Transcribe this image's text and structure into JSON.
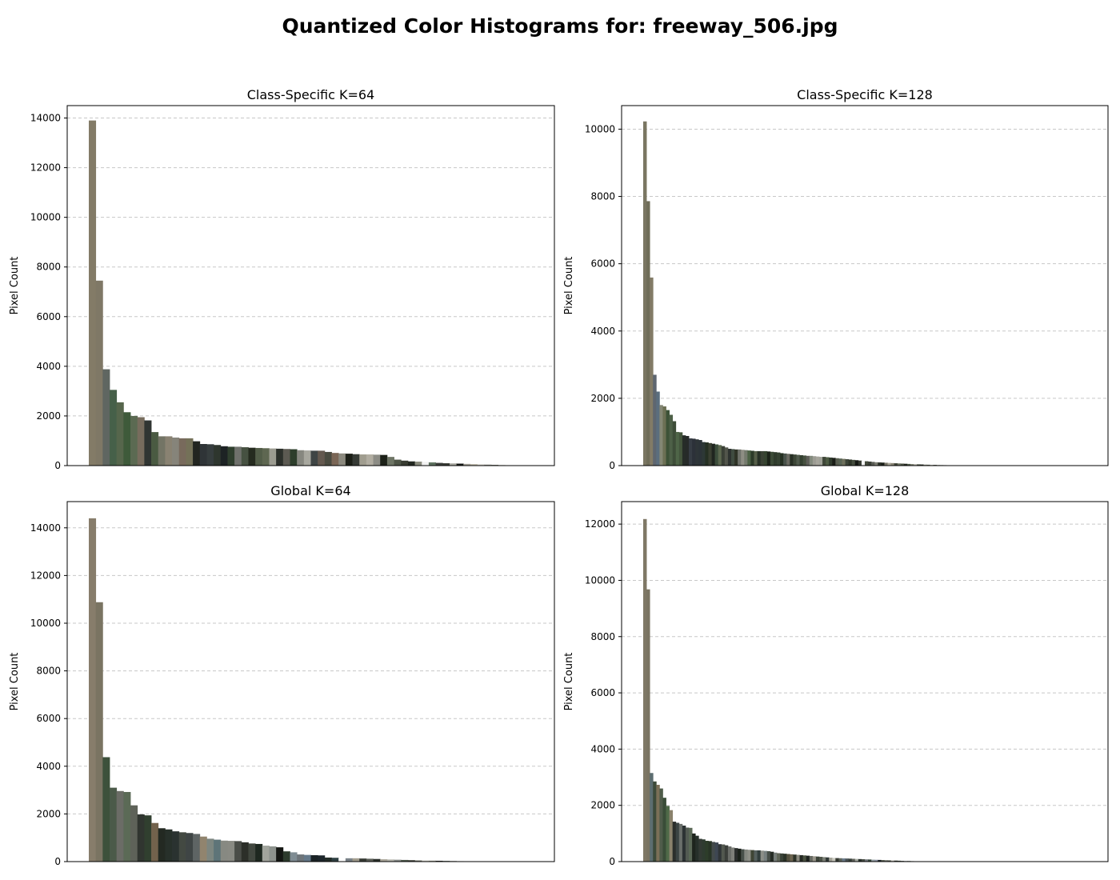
{
  "figure": {
    "title": "Quantized Color Histograms for: freeway_506.jpg"
  },
  "chart_data": [
    {
      "type": "bar",
      "title": "Class-Specific K=64",
      "xlabel": "",
      "ylabel": "Pixel Count",
      "ylim": [
        0,
        14500
      ],
      "yticks": [
        0,
        2000,
        4000,
        6000,
        8000,
        10000,
        12000,
        14000
      ],
      "grid": "y, dashed",
      "xticks": "none",
      "values": [
        13900,
        7450,
        3880,
        3050,
        2550,
        2150,
        2000,
        1950,
        1820,
        1350,
        1180,
        1180,
        1130,
        1100,
        1100,
        980,
        870,
        860,
        830,
        780,
        760,
        760,
        740,
        720,
        710,
        700,
        690,
        680,
        670,
        660,
        620,
        610,
        600,
        600,
        550,
        510,
        490,
        480,
        460,
        450,
        450,
        440,
        430,
        350,
        240,
        200,
        170,
        160,
        150,
        130,
        110,
        95,
        90,
        80,
        70,
        60,
        50,
        40,
        30,
        20,
        10,
        5,
        3,
        1
      ],
      "colors": [
        "#837b67",
        "#7f7866",
        "#5f6661",
        "#466049",
        "#56664c",
        "#3e5a3a",
        "#5b6a52",
        "#776c5d",
        "#303532",
        "#4a5a42",
        "#737465",
        "#898272",
        "#86847a",
        "#786a5c",
        "#747158",
        "#222520",
        "#2f3437",
        "#363d3e",
        "#2e362e",
        "#1d2324",
        "#2f3f2e",
        "#6f716c",
        "#465141",
        "#252b1f",
        "#525d48",
        "#5e6751",
        "#9c9c91",
        "#2c302b",
        "#5c5a52",
        "#2d3e2b",
        "#86877f",
        "#a7a79e",
        "#3f4545",
        "#64594f",
        "#4a4b40",
        "#7a6656",
        "#8b897e",
        "#1c1f17",
        "#363a35",
        "#a09d8f",
        "#b1ada1",
        "#8c8c85",
        "#1c2118",
        "#6e7565",
        "#4e5547",
        "#383c32",
        "#232821",
        "#8a8c7e",
        "#f2f2f2",
        "#5f7260",
        "#3b3e3a",
        "#383a34",
        "#a9a9a0",
        "#141714",
        "#a7a39a",
        "#bdb8a7",
        "#cfcdc4",
        "#8e8f88",
        "#6c6e63",
        "#9a9884",
        "#b9bbb0",
        "#3d4a35",
        "#2a2e25",
        "#1f221b"
      ]
    },
    {
      "type": "bar",
      "title": "Class-Specific K=128",
      "xlabel": "",
      "ylabel": "Pixel Count",
      "ylim": [
        0,
        10700
      ],
      "yticks": [
        0,
        2000,
        4000,
        6000,
        8000,
        10000
      ],
      "grid": "y, dashed",
      "xticks": "none",
      "values": [
        10230,
        7860,
        5590,
        2700,
        2200,
        1800,
        1760,
        1650,
        1510,
        1320,
        1000,
        990,
        900,
        880,
        810,
        800,
        780,
        760,
        700,
        690,
        670,
        650,
        630,
        610,
        580,
        540,
        500,
        490,
        480,
        480,
        470,
        460,
        450,
        440,
        430,
        430,
        430,
        430,
        420,
        410,
        400,
        390,
        370,
        360,
        350,
        340,
        330,
        320,
        310,
        300,
        290,
        290,
        280,
        270,
        260,
        260,
        250,
        240,
        230,
        220,
        210,
        200,
        190,
        180,
        170,
        160,
        150,
        140,
        130,
        120,
        110,
        100,
        95,
        90,
        85,
        80,
        75,
        70,
        65,
        60,
        55,
        50,
        46,
        42,
        38,
        34,
        30,
        27,
        24,
        21,
        18,
        15,
        13,
        11,
        9,
        7,
        5,
        4,
        3,
        2,
        2,
        1,
        1
      ],
      "colors": [
        "#7a7662",
        "#6f6d58",
        "#827b66",
        "#5e6670",
        "#5b6e7e",
        "#848774",
        "#6c7054",
        "#3d5237",
        "#4d6047",
        "#3e4d39",
        "#4f6548",
        "#44553c",
        "#262c28",
        "#262a29",
        "#363c44",
        "#2c3139",
        "#2e3538",
        "#2c3338",
        "#2d3836",
        "#253023",
        "#3a4032",
        "#202620",
        "#3b4d3b",
        "#5c684f",
        "#3a4036",
        "#52554b",
        "#2e3330",
        "#3f4b40",
        "#2e3326",
        "#6f726b",
        "#8e8e84",
        "#747a6d",
        "#4c6245",
        "#2c3a28",
        "#555e48",
        "#283126",
        "#3b4235",
        "#364430",
        "#1c2319",
        "#3c4a37",
        "#2f3b2c",
        "#354232",
        "#253022",
        "#48524a",
        "#6a6a62",
        "#272f24",
        "#3c4637",
        "#505a4c",
        "#344030",
        "#46503f",
        "#5e5e58",
        "#838a7d",
        "#9c9c93",
        "#a6a59c",
        "#a0a198",
        "#3f4739",
        "#4e5c44",
        "#2f3a2c",
        "#1a1d17",
        "#585d50",
        "#596555",
        "#6e705c",
        "#3c4438",
        "#2e3528",
        "#444c3e",
        "#151814",
        "#34382f",
        "#f4f4f4",
        "#444a3c",
        "#3a3f36",
        "#5a5d55",
        "#7b7d72",
        "#2d3329",
        "#1d221a",
        "#767366",
        "#a8a697",
        "#8a8676",
        "#3f4437",
        "#6b7160",
        "#4d5244",
        "#252a21",
        "#535e4c",
        "#818474",
        "#b1b0a5",
        "#414a3c",
        "#2a3126",
        "#929487",
        "#6a6e61",
        "#c6c4b8",
        "#373e32",
        "#8d9084",
        "#565a4e",
        "#22271f",
        "#3c4235",
        "#9a9a8d",
        "#464c40",
        "#777a6d",
        "#2f3429",
        "#5d6154",
        "#b8b7ab",
        "#cfcdc2",
        "#1d2019",
        "#6f7366"
      ]
    },
    {
      "type": "bar",
      "title": "Global K=64",
      "xlabel": "",
      "ylabel": "Pixel Count",
      "ylim": [
        0,
        15100
      ],
      "yticks": [
        0,
        2000,
        4000,
        6000,
        8000,
        10000,
        12000,
        14000
      ],
      "grid": "y, dashed",
      "xticks": "none",
      "values": [
        14400,
        10880,
        4380,
        3100,
        2960,
        2920,
        2360,
        1980,
        1940,
        1620,
        1400,
        1350,
        1270,
        1230,
        1200,
        1160,
        1050,
        960,
        920,
        880,
        870,
        860,
        810,
        760,
        740,
        670,
        640,
        600,
        430,
        390,
        300,
        280,
        270,
        260,
        170,
        160,
        150,
        140,
        140,
        130,
        120,
        110,
        100,
        90,
        80,
        70,
        60,
        50,
        45,
        40,
        35,
        30,
        25,
        20,
        15,
        12,
        10,
        8,
        6,
        5,
        4,
        3,
        2,
        1
      ],
      "colors": [
        "#877d6b",
        "#7a7462",
        "#3d513b",
        "#4b5a49",
        "#6b6c66",
        "#5b6a56",
        "#5e6259",
        "#303530",
        "#303f2f",
        "#72624c",
        "#232922",
        "#27302a",
        "#2a3230",
        "#434942",
        "#3f4545",
        "#5e6464",
        "#91846e",
        "#7d8680",
        "#5e7478",
        "#878982",
        "#898a83",
        "#4a4d48",
        "#2c2f29",
        "#41473f",
        "#1e2820",
        "#a2a59d",
        "#8d928d",
        "#141613",
        "#2d3b2d",
        "#7f8c93",
        "#6e757a",
        "#65798a",
        "#1b2326",
        "#1d262b",
        "#232c28",
        "#2f4043",
        "#ffffff",
        "#7a8288",
        "#a29d8e",
        "#383c36",
        "#5b5e57",
        "#2a2f2a",
        "#ada99c",
        "#b5b5ab",
        "#8a8e8b",
        "#4e5a4c",
        "#3d3f37",
        "#6d6e64",
        "#c8c6bb",
        "#9c9b8c",
        "#262924",
        "#57605a",
        "#7e8177",
        "#d5d4ce",
        "#3b4433",
        "#6a6b5e",
        "#909286",
        "#a8aaa2",
        "#1a1d18",
        "#5b5448",
        "#35372f",
        "#bfbcaf",
        "#4c4f45",
        "#7f7a6e"
      ]
    },
    {
      "type": "bar",
      "title": "Global K=128",
      "xlabel": "",
      "ylabel": "Pixel Count",
      "ylim": [
        0,
        12800
      ],
      "yticks": [
        0,
        2000,
        4000,
        6000,
        8000,
        10000,
        12000
      ],
      "grid": "y, dashed",
      "xticks": "none",
      "values": [
        12180,
        9680,
        3150,
        2850,
        2730,
        2600,
        2270,
        1980,
        1830,
        1420,
        1380,
        1340,
        1280,
        1210,
        1200,
        1000,
        920,
        810,
        790,
        740,
        730,
        700,
        680,
        620,
        610,
        580,
        540,
        500,
        480,
        460,
        440,
        430,
        420,
        410,
        400,
        400,
        390,
        380,
        370,
        350,
        320,
        300,
        290,
        280,
        270,
        260,
        250,
        240,
        230,
        220,
        210,
        200,
        190,
        180,
        170,
        160,
        150,
        140,
        130,
        125,
        120,
        115,
        110,
        105,
        100,
        95,
        90,
        85,
        80,
        75,
        70,
        65,
        60,
        55,
        50,
        45,
        40,
        36,
        32,
        28,
        24,
        20,
        17,
        14,
        11,
        9,
        7,
        5,
        4,
        3,
        2,
        1
      ],
      "colors": [
        "#7f7866",
        "#7a7462",
        "#5c6d70",
        "#3d4b3a",
        "#7b7058",
        "#4f5c4a",
        "#3a4d38",
        "#4f6a48",
        "#8a826c",
        "#2b2f2c",
        "#3b4443",
        "#6a6f6b",
        "#2d3334",
        "#525a52",
        "#5a6856",
        "#1d241d",
        "#27302a",
        "#333a34",
        "#2e3b30",
        "#2d3d2a",
        "#283426",
        "#434a4a",
        "#3e4752",
        "#303537",
        "#52584f",
        "#3b3f3a",
        "#6b6e69",
        "#7e807a",
        "#2a2e2c",
        "#1b221b",
        "#47504a",
        "#82867f",
        "#8d8f87",
        "#3f4535",
        "#55605e",
        "#323e3c",
        "#8c8f88",
        "#77807f",
        "#485049",
        "#262c26",
        "#757c78",
        "#5f6558",
        "#3a4237",
        "#2b3227",
        "#55513f",
        "#6c6450",
        "#2e3429",
        "#8b8a7f",
        "#262a24",
        "#4a5241",
        "#1d221e",
        "#676a62",
        "#98958a",
        "#3d4439",
        "#4e5449",
        "#7b7f76",
        "#2f3735",
        "#a3a297",
        "#c9c8be",
        "#353a32",
        "#5f655b",
        "#6c7b8a",
        "#4b5558",
        "#38403a",
        "#60625b",
        "#a8aca4",
        "#28302b",
        "#464d43",
        "#72767b",
        "#344638",
        "#95a0a3",
        "#8e95a5",
        "#1c2327",
        "#555b4f",
        "#6b6f66",
        "#4a5145",
        "#b2b0a6",
        "#2f3529",
        "#3e463e",
        "#5f6860",
        "#9ea2a3",
        "#22291f",
        "#7d837b",
        "#4b5a4a",
        "#39423b",
        "#c8c5b9",
        "#2d3327",
        "#606a64",
        "#8c9692",
        "#1a1f1a",
        "#474d41",
        "#6e7065"
      ]
    }
  ]
}
